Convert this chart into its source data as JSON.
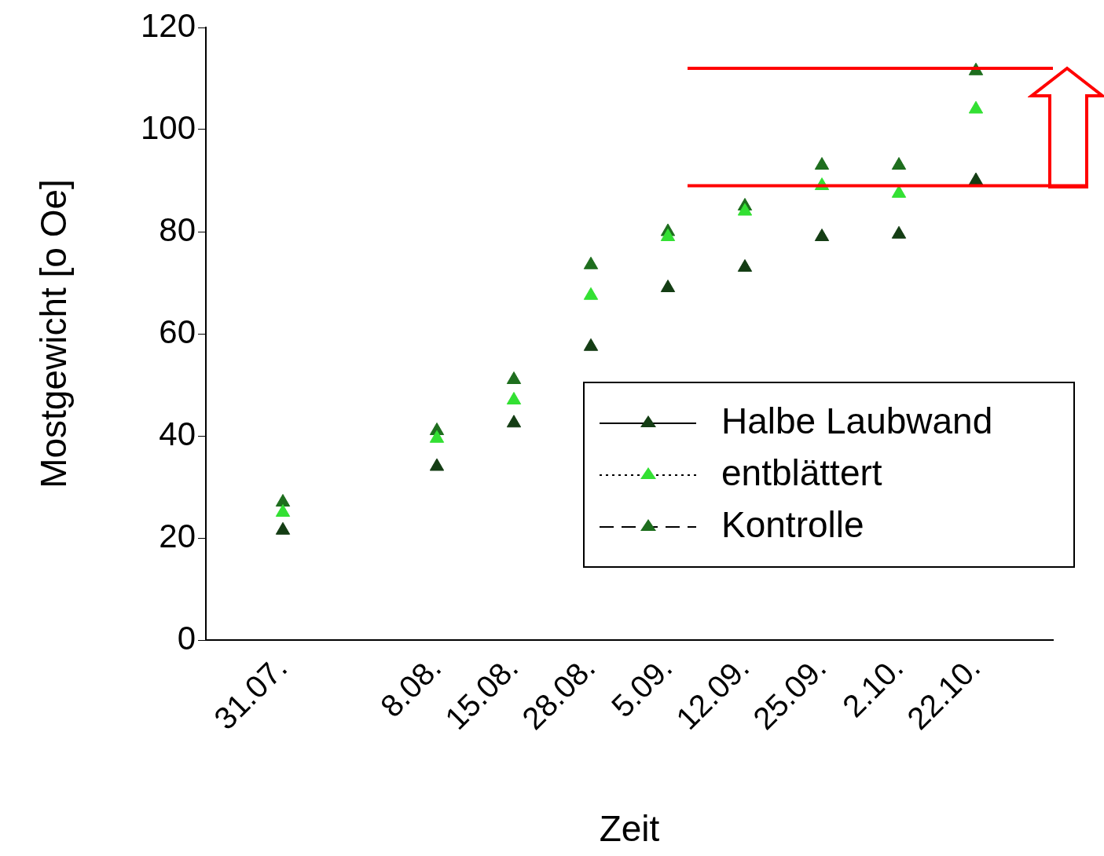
{
  "chart_data": {
    "type": "scatter",
    "xlabel": "Zeit",
    "ylabel": "Mostgewicht [o Oe]",
    "categories": [
      "31.07.",
      null,
      "8.08.",
      "15.08.",
      "28.08.",
      "5.09.",
      "12.09.",
      "25.09.",
      "2.10.",
      "22.10."
    ],
    "series": [
      {
        "name": "Halbe Laubwand",
        "color": "#143d14",
        "line_style": "solid",
        "values": [
          21.5,
          null,
          34,
          42.5,
          57.5,
          69,
          73,
          79,
          79.5,
          90
        ]
      },
      {
        "name": "entblättert",
        "color": "#33e033",
        "line_style": "dotted",
        "values": [
          25,
          null,
          39.5,
          47,
          67.5,
          79,
          84,
          89,
          87.5,
          104
        ]
      },
      {
        "name": "Kontrolle",
        "color": "#1e6e1e",
        "line_style": "dashed",
        "values": [
          27,
          null,
          41,
          51,
          73.5,
          80,
          85,
          93,
          93,
          111.5
        ]
      }
    ],
    "ylim": [
      0,
      120
    ],
    "yticks": [
      0,
      20,
      40,
      60,
      80,
      100,
      120
    ],
    "grid": false,
    "legend": "bottom right",
    "marker": "triangle",
    "ref_lines": [
      {
        "axis": "y",
        "value": 112,
        "color": "#ff0000"
      },
      {
        "axis": "y",
        "value": 89,
        "color": "#ff0000"
      }
    ]
  }
}
